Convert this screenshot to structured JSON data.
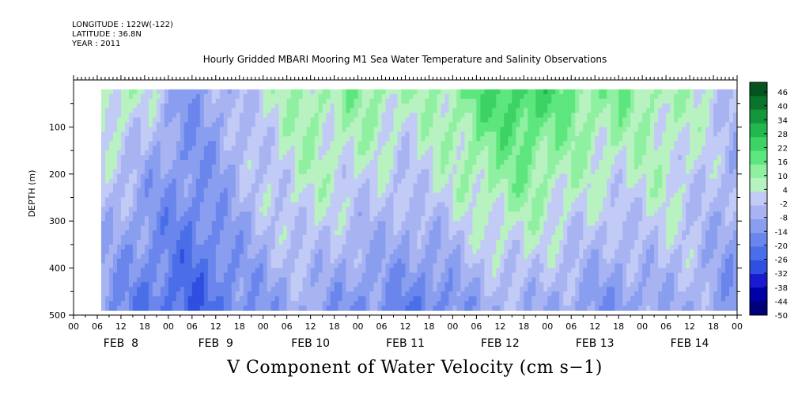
{
  "header": {
    "longitude": "LONGITUDE : 122W(-122)",
    "latitude": "LATITUDE : 36.8N",
    "year": "YEAR : 2011",
    "title": "Hourly Gridded MBARI Mooring M1 Sea Water Temperature and Salinity Observations"
  },
  "colorbar_label": "V Component of Water Velocity (cm s−1)",
  "chart_data": {
    "type": "heatmap",
    "title": "Hourly Gridded MBARI Mooring M1 Sea Water Temperature and Salinity Observations",
    "xlabel": "",
    "ylabel": "DEPTH (m)",
    "ylim": [
      500,
      0
    ],
    "y_ticks": [
      100,
      200,
      300,
      400,
      500
    ],
    "x_hour_ticks": [
      "00",
      "06",
      "12",
      "18",
      "00",
      "06",
      "12",
      "18",
      "00",
      "06",
      "12",
      "18",
      "00",
      "06",
      "12",
      "18",
      "00",
      "06",
      "12",
      "18",
      "00",
      "06",
      "12",
      "18",
      "00",
      "06",
      "12",
      "18",
      "00"
    ],
    "x_day_labels": [
      "FEB  8",
      "FEB  9",
      "FEB 10",
      "FEB 11",
      "FEB 12",
      "FEB 13",
      "FEB 14"
    ],
    "x_range_hours": [
      0,
      168
    ],
    "data_hour_range": [
      7,
      168
    ],
    "data_depth_range": [
      20,
      490
    ],
    "colorbar": {
      "label": "V Component of Water Velocity (cm s-1)",
      "tick_labels": [
        "46",
        "40",
        "34",
        "28",
        "22",
        "16",
        "10",
        "4",
        "-2",
        "-8",
        "-14",
        "-20",
        "-26",
        "-32",
        "-38",
        "-44",
        "-50"
      ],
      "min": -50,
      "max": 50,
      "step": 3,
      "colors_low_to_high": [
        "#00007a",
        "#0000a8",
        "#1a1ad0",
        "#2f4fe0",
        "#4a6ee8",
        "#6a86ec",
        "#8a9ef0",
        "#a8b4f2",
        "#c2caf6",
        "#b8f2c0",
        "#8ef0a0",
        "#5ee67e",
        "#3cd264",
        "#22b84e",
        "#15963c",
        "#0b742c",
        "#05541e"
      ]
    },
    "depth_profile_hours": [
      7,
      12,
      18,
      24,
      30,
      36,
      42,
      48,
      54,
      60,
      66,
      72,
      78,
      84,
      90,
      96,
      102,
      108,
      114,
      120,
      126,
      132,
      138,
      144,
      150,
      156,
      162,
      168
    ],
    "v_near_surface": [
      6,
      8,
      4,
      -6,
      -12,
      -8,
      -4,
      2,
      6,
      10,
      8,
      12,
      10,
      6,
      8,
      10,
      18,
      22,
      24,
      20,
      16,
      12,
      14,
      10,
      8,
      6,
      2,
      -4
    ],
    "v_mid_depth": [
      -2,
      -6,
      -10,
      -14,
      -16,
      -12,
      -6,
      -2,
      2,
      4,
      2,
      0,
      -2,
      -4,
      0,
      2,
      6,
      8,
      10,
      6,
      4,
      2,
      0,
      2,
      4,
      0,
      -4,
      -8
    ],
    "v_bottom": [
      -12,
      -16,
      -20,
      -22,
      -26,
      -22,
      -16,
      -12,
      -10,
      -8,
      -12,
      -16,
      -14,
      -18,
      -20,
      -14,
      -10,
      -8,
      -6,
      -8,
      -10,
      -12,
      -14,
      -10,
      -8,
      -6,
      -10,
      -14
    ]
  }
}
